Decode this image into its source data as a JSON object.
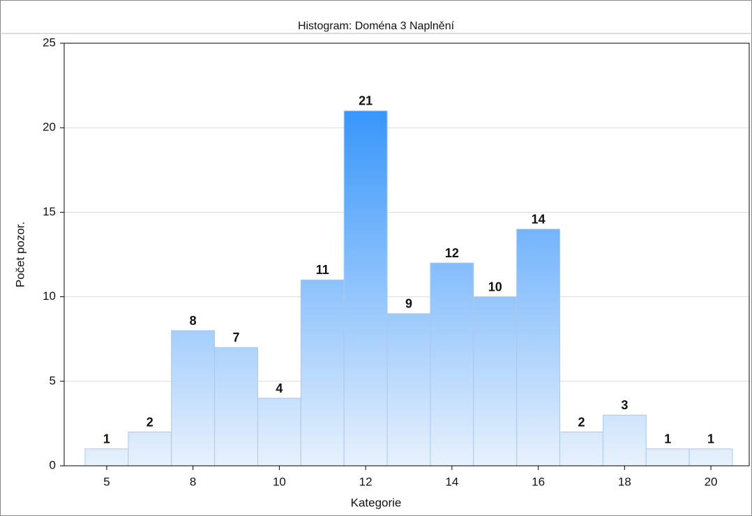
{
  "chart_data": {
    "type": "bar",
    "title": "Histogram: Doména 3 Naplnění",
    "x_label": "Kategorie",
    "y_label": "Počet pozor.",
    "categories": [
      5,
      null,
      8,
      null,
      10,
      null,
      12,
      null,
      14,
      null,
      16,
      null,
      18,
      null,
      20
    ],
    "values": [
      1,
      2,
      8,
      7,
      4,
      11,
      21,
      9,
      12,
      10,
      14,
      2,
      3,
      1,
      1
    ],
    "color": "#2b8ffb",
    "ylim": [
      0,
      25
    ],
    "yticks": [
      0,
      5,
      10,
      15,
      20,
      25
    ],
    "grid": true
  }
}
